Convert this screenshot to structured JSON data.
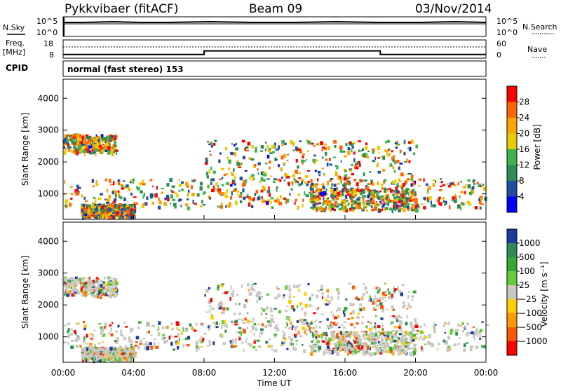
{
  "header": {
    "station": "Pykkvibaer (fitACF)",
    "beam": "Beam 09",
    "date": "03/Nov/2014"
  },
  "noise_panel": {
    "left_label": "N.Sky",
    "right_label": "N.Search",
    "left_ticks": [
      "10^5",
      "10^0"
    ],
    "right_ticks": [
      "10^5",
      "10^0"
    ]
  },
  "freq_panel": {
    "left_label_line1": "Freq.",
    "left_label_line2": "[MHz]",
    "right_label": "Nave",
    "left_ticks": [
      "18",
      "8"
    ],
    "right_ticks": [
      "60",
      "0"
    ]
  },
  "cpid": {
    "label": "CPID",
    "text": "normal (fast stereo) 153"
  },
  "power_panel": {
    "ylabel": "Slant Range [km]",
    "colorbar_label": "Power [dB]",
    "colorbar_ticks": [
      "28",
      "24",
      "20",
      "16",
      "12",
      "8",
      "4"
    ],
    "colors": [
      "#ff0000",
      "#ff6600",
      "#ffa500",
      "#e6cc00",
      "#3cb44b",
      "#2e8b57",
      "#1f4fa0",
      "#0000ff"
    ]
  },
  "velocity_panel": {
    "ylabel": "Slant Range [km]",
    "colorbar_label": "Velocity [m s⁻¹]",
    "colorbar_ticks": [
      "1000",
      "500",
      "100",
      "25",
      "−25",
      "−100",
      "−500",
      "−1000"
    ],
    "colors": [
      "#1a3ca0",
      "#2e8b57",
      "#33a833",
      "#66cc33",
      "#c8c8c0",
      "#ffcc00",
      "#ff9900",
      "#ff5500",
      "#ff0000"
    ]
  },
  "x_axis": {
    "label": "Time UT",
    "ticks": [
      "00:00",
      "04:00",
      "08:00",
      "12:00",
      "16:00",
      "20:00",
      "00:00"
    ]
  },
  "chart_data": {
    "type": "heatmap",
    "y_ticks": [
      "1000",
      "2000",
      "3000",
      "4000"
    ],
    "ylim": [
      200,
      4600
    ],
    "xlim": [
      "00:00",
      "24:00"
    ],
    "frequency": {
      "xlabel": "Time UT",
      "ylabel": "Freq. [MHz]",
      "series": [
        {
          "x": [
            0,
            8,
            8,
            18,
            18,
            24
          ],
          "y": [
            10,
            10,
            12,
            12,
            10,
            10
          ]
        }
      ]
    }
  }
}
